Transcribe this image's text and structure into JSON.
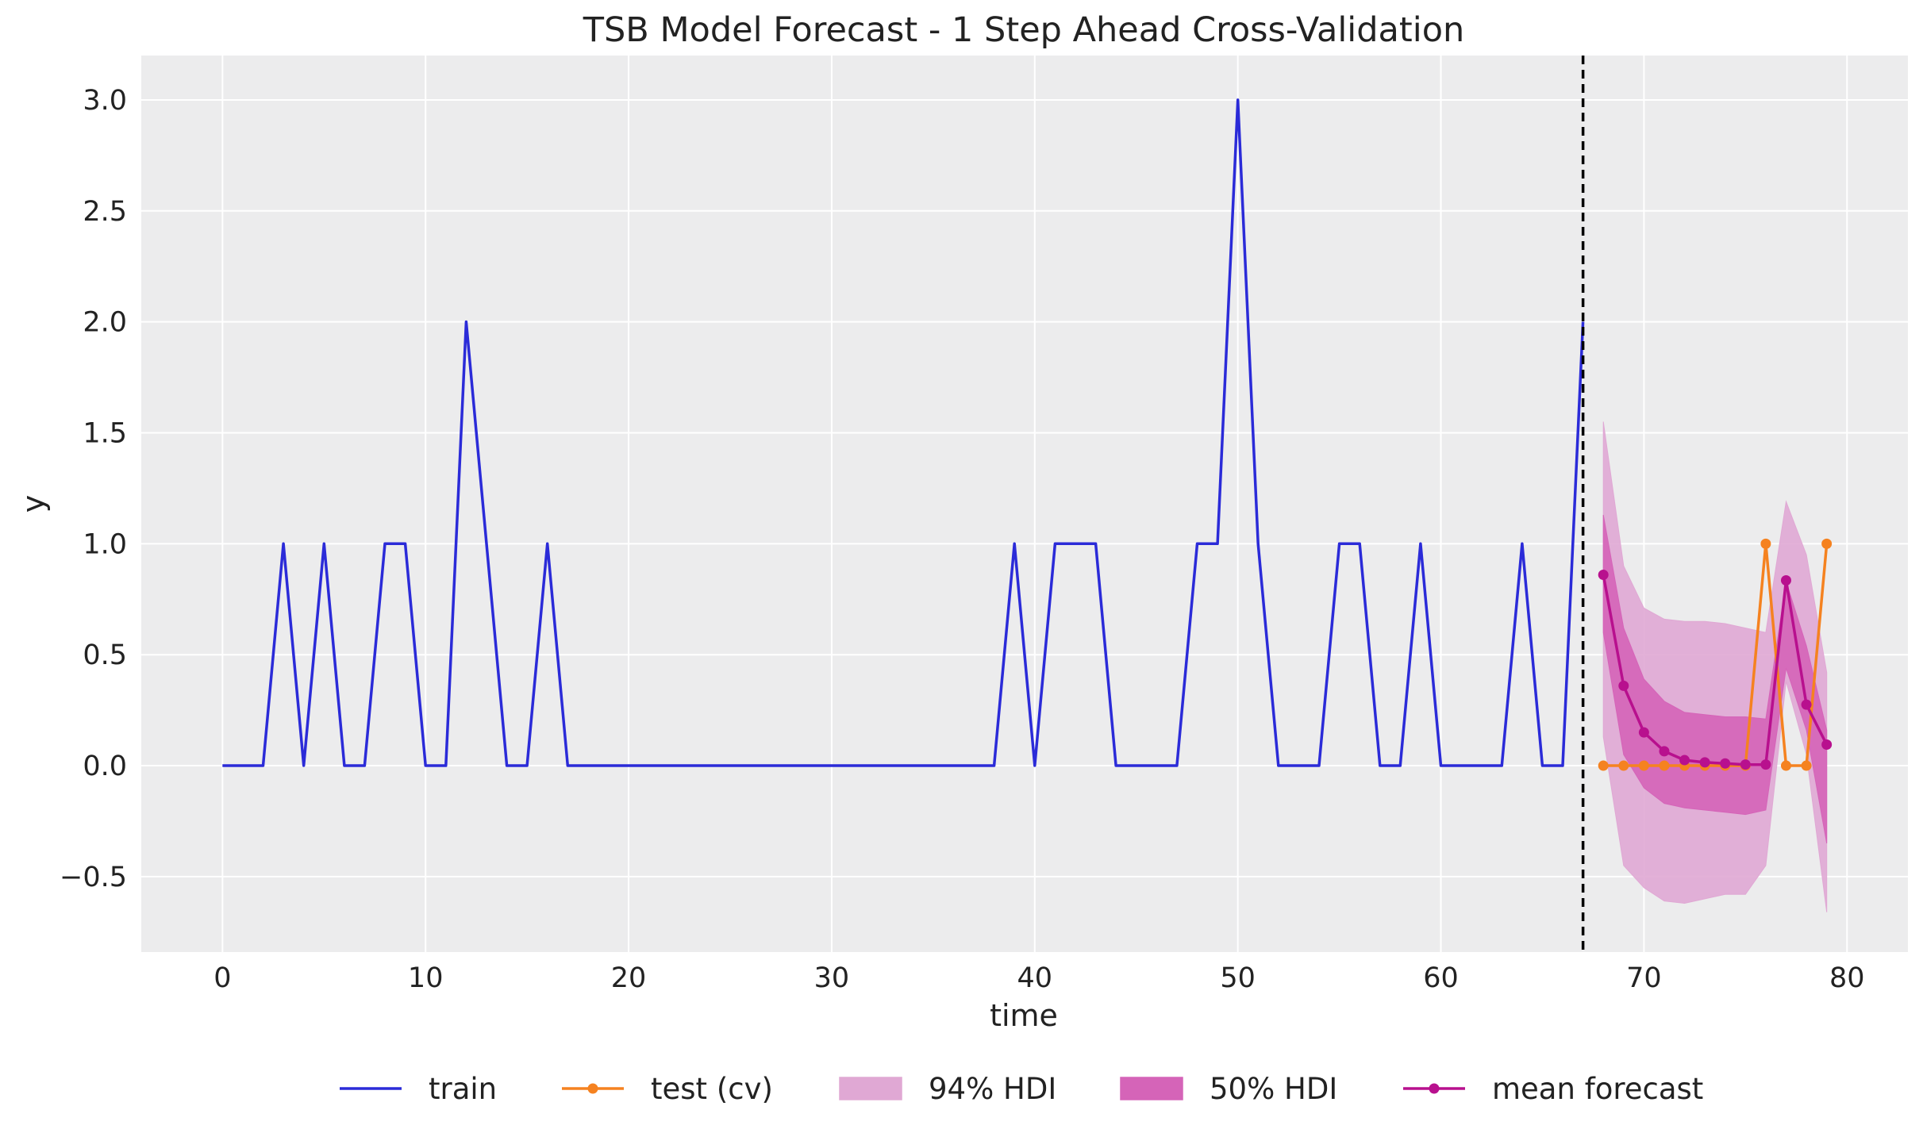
{
  "chart_data": {
    "type": "line",
    "title": "TSB Model Forecast - 1 Step Ahead Cross-Validation",
    "xlabel": "time",
    "ylabel": "y",
    "xlim": [
      -4,
      83
    ],
    "ylim": [
      -0.84,
      3.2
    ],
    "xticks": [
      0,
      10,
      20,
      30,
      40,
      50,
      60,
      70,
      80
    ],
    "xtick_labels": [
      "0",
      "10",
      "20",
      "30",
      "40",
      "50",
      "60",
      "70",
      "80"
    ],
    "yticks": [
      -0.5,
      0.0,
      0.5,
      1.0,
      1.5,
      2.0,
      2.5,
      3.0
    ],
    "ytick_labels": [
      "−0.5",
      "0.0",
      "0.5",
      "1.0",
      "1.5",
      "2.0",
      "2.5",
      "3.0"
    ],
    "grid": true,
    "legend_position": "bottom-center",
    "cutoff_x": 67,
    "colors": {
      "train": "#2b2bd8",
      "test": "#f58220",
      "hdi94": "#e0a8d4",
      "hdi50": "#d564b8",
      "mean": "#b8108e",
      "background": "#ececed",
      "grid": "#ffffff",
      "cutoff": "#000000"
    },
    "series": [
      {
        "name": "train",
        "type": "line",
        "x": [
          0,
          1,
          2,
          3,
          4,
          5,
          6,
          7,
          8,
          9,
          10,
          11,
          12,
          13,
          14,
          15,
          16,
          17,
          18,
          19,
          20,
          21,
          22,
          23,
          24,
          25,
          26,
          27,
          28,
          29,
          30,
          31,
          32,
          33,
          34,
          35,
          36,
          37,
          38,
          39,
          40,
          41,
          42,
          43,
          44,
          45,
          46,
          47,
          48,
          49,
          50,
          51,
          52,
          53,
          54,
          55,
          56,
          57,
          58,
          59,
          60,
          61,
          62,
          63,
          64,
          65,
          66,
          67
        ],
        "y": [
          0,
          0,
          0,
          1,
          0,
          1,
          0,
          0,
          1,
          1,
          0,
          0,
          2,
          1,
          0,
          0,
          1,
          0,
          0,
          0,
          0,
          0,
          0,
          0,
          0,
          0,
          0,
          0,
          0,
          0,
          0,
          0,
          0,
          0,
          0,
          0,
          0,
          0,
          0,
          1,
          0,
          1,
          1,
          1,
          0,
          0,
          0,
          0,
          1,
          1,
          3,
          1,
          0,
          0,
          0,
          1,
          1,
          0,
          0,
          1,
          0,
          0,
          0,
          0,
          1,
          0,
          0,
          2
        ]
      },
      {
        "name": "test (cv)",
        "type": "line-markers",
        "x": [
          68,
          69,
          70,
          71,
          72,
          73,
          74,
          75,
          76,
          77,
          78,
          79
        ],
        "y": [
          0,
          0,
          0,
          0,
          0,
          0,
          0,
          0,
          1,
          0,
          0,
          1
        ]
      },
      {
        "name": "94% HDI",
        "type": "band",
        "x": [
          68,
          69,
          70,
          71,
          72,
          73,
          74,
          75,
          76,
          77,
          78,
          79
        ],
        "lower": [
          0.13,
          -0.45,
          -0.55,
          -0.61,
          -0.62,
          -0.6,
          -0.58,
          -0.58,
          -0.45,
          0.38,
          0.05,
          -0.66
        ],
        "upper": [
          1.55,
          0.9,
          0.71,
          0.66,
          0.65,
          0.65,
          0.64,
          0.62,
          0.6,
          1.19,
          0.95,
          0.42
        ]
      },
      {
        "name": "50% HDI",
        "type": "band",
        "x": [
          68,
          69,
          70,
          71,
          72,
          73,
          74,
          75,
          76,
          77,
          78,
          79
        ],
        "lower": [
          0.6,
          0.05,
          -0.1,
          -0.17,
          -0.19,
          -0.2,
          -0.21,
          -0.22,
          -0.2,
          0.44,
          0.16,
          -0.35
        ],
        "upper": [
          1.13,
          0.62,
          0.39,
          0.29,
          0.24,
          0.23,
          0.22,
          0.22,
          0.21,
          0.83,
          0.54,
          0.16
        ]
      },
      {
        "name": "mean forecast",
        "type": "line-markers",
        "x": [
          68,
          69,
          70,
          71,
          72,
          73,
          74,
          75,
          76,
          77,
          78,
          79
        ],
        "y": [
          0.86,
          0.36,
          0.15,
          0.065,
          0.025,
          0.015,
          0.01,
          0.005,
          0.005,
          0.835,
          0.275,
          0.095
        ]
      }
    ]
  }
}
